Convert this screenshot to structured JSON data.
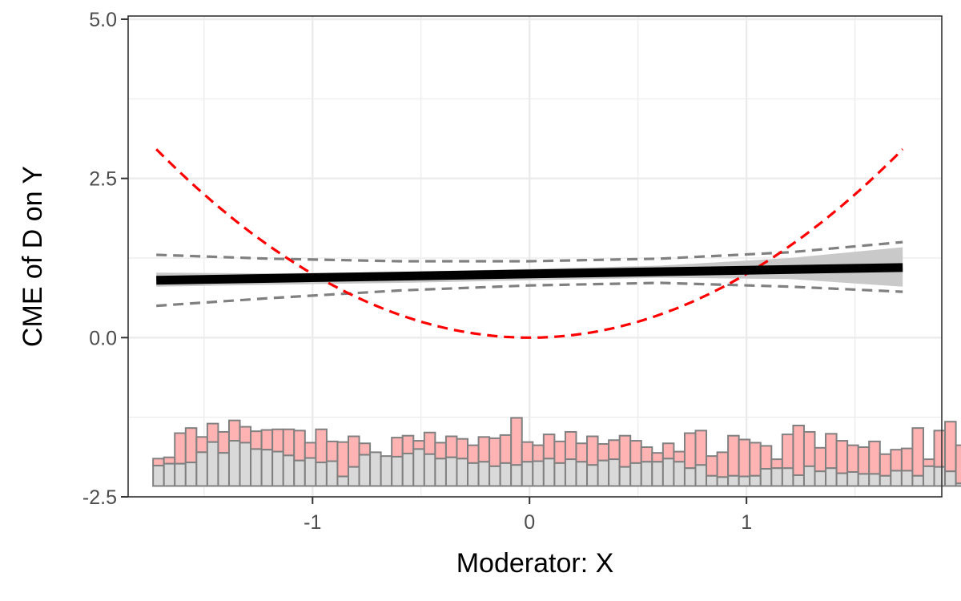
{
  "chart_data": {
    "type": "line",
    "title": "",
    "xlabel": "Moderator: X",
    "ylabel": "CME of D on Y",
    "xlim": [
      -1.85,
      1.9
    ],
    "ylim": [
      -2.5,
      5.05
    ],
    "x_ticks": [
      -1,
      0,
      1
    ],
    "x_tick_labels": [
      "-1",
      "0",
      "1"
    ],
    "y_ticks": [
      -2.5,
      0,
      2.5,
      5
    ],
    "y_tick_labels": [
      "-2.5",
      "0.0",
      "2.5",
      "5.0"
    ],
    "grid": true,
    "legend": "none",
    "colors": {
      "estimate": "#000000",
      "ci_band": "#c9c9c9",
      "ci_dashed": "#808080",
      "true_effect": "#ff0000",
      "hist_treated": "#ffb3b3",
      "hist_control": "#d9d9d9",
      "hist_border": "#808080"
    },
    "series": [
      {
        "x": [
          -1.72,
          1.72
        ],
        "y": [
          0.9,
          1.1
        ]
      },
      {
        "x": [
          -1.72,
          -1.2,
          -0.6,
          0,
          0.6,
          1.2,
          1.72
        ],
        "y": [
          0.8,
          0.83,
          0.86,
          0.9,
          0.94,
          0.92,
          0.8
        ],
        "role": "band_lower"
      },
      {
        "x": [
          -1.72,
          -1.2,
          -0.6,
          0,
          0.6,
          1.2,
          1.72
        ],
        "y": [
          1.02,
          1.01,
          1.03,
          1.08,
          1.13,
          1.25,
          1.42
        ],
        "role": "band_upper"
      },
      {
        "x": [
          -1.72,
          -1.2,
          -0.6,
          0,
          0.6,
          1.2,
          1.72
        ],
        "y": [
          1.3,
          1.24,
          1.2,
          1.2,
          1.24,
          1.34,
          1.5
        ],
        "role": "dashed_upper"
      },
      {
        "x": [
          -1.72,
          -1.2,
          -0.6,
          0,
          0.6,
          1.2,
          1.72
        ],
        "y": [
          0.5,
          0.62,
          0.74,
          0.82,
          0.86,
          0.8,
          0.72
        ],
        "role": "dashed_lower"
      },
      {
        "function": "x^2",
        "x": [
          -1.72,
          1.72
        ],
        "role": "true_effect"
      }
    ],
    "histogram": {
      "base": -2.33,
      "x_start": -1.735,
      "bin_width": 0.05,
      "control_tops": [
        -2.01,
        -1.98,
        -1.98,
        -1.96,
        -1.8,
        -1.64,
        -1.81,
        -1.62,
        -1.65,
        -1.75,
        -1.76,
        -1.79,
        -1.85,
        -1.93,
        -1.89,
        -1.96,
        -1.94,
        -2.18,
        -2.03,
        -1.84,
        -1.8,
        -1.86,
        -1.87,
        -1.82,
        -1.75,
        -1.83,
        -1.9,
        -1.88,
        -1.9,
        -1.97,
        -1.95,
        -2.02,
        -1.97,
        -2.0,
        -1.95,
        -1.94,
        -1.9,
        -1.97,
        -1.91,
        -1.95,
        -2.0,
        -1.93,
        -1.91,
        -2.03,
        -1.97,
        -1.95,
        -1.95,
        -1.9,
        -1.95,
        -2.05,
        -2.0,
        -2.17,
        -2.19,
        -2.17,
        -2.18,
        -2.17,
        -2.06,
        -2.05,
        -2.05,
        -2.16,
        -2.02,
        -2.1,
        -2.05,
        -2.13,
        -2.11,
        -2.14,
        -2.14,
        -2.17,
        -2.09,
        -2.09,
        -2.17,
        -2.02,
        -2.03,
        -2.1,
        -2.29
      ],
      "treated_tops": [
        -1.9,
        -1.88,
        -1.5,
        -1.42,
        -1.56,
        -1.35,
        -1.48,
        -1.3,
        -1.4,
        -1.47,
        -1.45,
        -1.44,
        -1.44,
        -1.46,
        -1.65,
        -1.44,
        -1.63,
        -1.64,
        -1.55,
        -1.66,
        -1.84,
        -1.95,
        -1.57,
        -1.54,
        -1.62,
        -1.49,
        -1.65,
        -1.55,
        -1.59,
        -1.69,
        -1.56,
        -1.58,
        -1.53,
        -1.26,
        -1.64,
        -1.69,
        -1.52,
        -1.63,
        -1.48,
        -1.66,
        -1.55,
        -1.67,
        -1.61,
        -1.54,
        -1.62,
        -1.72,
        -1.81,
        -1.66,
        -1.79,
        -1.5,
        -1.46,
        -1.86,
        -1.8,
        -1.54,
        -1.6,
        -1.65,
        -1.7,
        -1.91,
        -1.52,
        -1.38,
        -1.48,
        -1.73,
        -1.51,
        -1.62,
        -1.69,
        -1.72,
        -1.63,
        -1.83,
        -1.76,
        -1.74,
        -1.42,
        -1.91,
        -1.46,
        -1.32,
        -1.69
      ]
    }
  }
}
